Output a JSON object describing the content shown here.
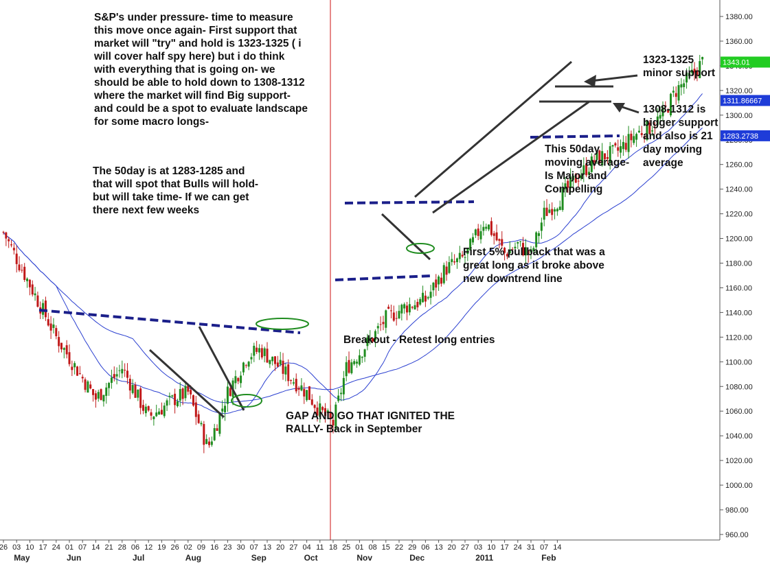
{
  "chart_data": {
    "type": "candlestick",
    "title": "",
    "xlabel": "",
    "ylabel": "",
    "ylim": [
      955,
      1390
    ],
    "y_ticks": [
      "960.00",
      "980.00",
      "1000.00",
      "1020.00",
      "1040.00",
      "1060.00",
      "1080.00",
      "1100.00",
      "1120.00",
      "1140.00",
      "1160.00",
      "1180.00",
      "1200.00",
      "1220.00",
      "1240.00",
      "1260.00",
      "1280.00",
      "1300.00",
      "1320.00",
      "1340.00",
      "1360.00",
      "1380.00"
    ],
    "x_day_ticks": [
      "26",
      "03",
      "10",
      "17",
      "24",
      "01",
      "07",
      "14",
      "21",
      "28",
      "06",
      "12",
      "19",
      "26",
      "02",
      "09",
      "16",
      "23",
      "30",
      "07",
      "13",
      "20",
      "27",
      "04",
      "11",
      "18",
      "25",
      "01",
      "08",
      "15",
      "22",
      "29",
      "06",
      "13",
      "20",
      "27",
      "03",
      "10",
      "17",
      "24",
      "31",
      "07",
      "14"
    ],
    "x_month_labels": [
      {
        "label": "May",
        "day_index": 1
      },
      {
        "label": "Jun",
        "day_index": 5
      },
      {
        "label": "Jul",
        "day_index": 10
      },
      {
        "label": "Aug",
        "day_index": 14
      },
      {
        "label": "Sep",
        "day_index": 19
      },
      {
        "label": "Oct",
        "day_index": 23
      },
      {
        "label": "Nov",
        "day_index": 27
      },
      {
        "label": "Dec",
        "day_index": 31
      },
      {
        "label": "2011",
        "day_index": 36
      },
      {
        "label": "Feb",
        "day_index": 41
      }
    ],
    "price_badges": [
      {
        "label": "1343.01",
        "value": 1343.01,
        "color": "#22cc22"
      },
      {
        "label": "1311.86667",
        "value": 1311.87,
        "color": "#1e3cd8"
      },
      {
        "label": "1283.2738",
        "value": 1283.27,
        "color": "#1e3cd8"
      }
    ],
    "annotations": [
      {
        "lines": [
          "S&P's under pressure- time to measure",
          "this move once again- First support that",
          "market will \"try\" and hold is 1323-1325 ( i",
          "will cover half spy here)  but i do think",
          "with everything that is going on- we",
          "should be able to hold down to 1308-1312",
          "where the market will find Big support-",
          "and could be a spot to evaluate landscape",
          "for some macro longs-"
        ]
      },
      {
        "lines": [
          "The 50day is at 1283-1285 and",
          "that will spot that Bulls will hold-",
          "but will take time- If we can get",
          "there next few weeks"
        ]
      },
      {
        "lines": [
          "1323-1325",
          "minor support"
        ]
      },
      {
        "lines": [
          "1308-1312 is",
          "bigger support",
          "and also is 21",
          "day moving",
          "average"
        ]
      },
      {
        "lines": [
          "This 50day",
          "moving average-",
          "Is Major and",
          "Compelling"
        ]
      },
      {
        "lines": [
          "First 5% pullback that was a",
          "great long as it broke above",
          "new downtrend line"
        ]
      },
      {
        "lines": [
          "Breakout - Retest long entries"
        ]
      },
      {
        "lines": [
          "GAP AND GO THAT IGNITED THE",
          "RALLY- Back in September"
        ]
      }
    ],
    "moving_averages": [
      {
        "name": "",
        "color": "#2a3fd0",
        "period_days": 21
      },
      {
        "name": "",
        "color": "#2a3fd0",
        "period_days": 50
      }
    ],
    "close_path": [
      [
        0,
        1205
      ],
      [
        4,
        1120
      ],
      [
        7,
        1070
      ],
      [
        9,
        1095
      ],
      [
        11,
        1055
      ],
      [
        13,
        1070
      ],
      [
        14,
        1075
      ],
      [
        15.5,
        1030
      ],
      [
        17,
        1075
      ],
      [
        18.5,
        1105
      ],
      [
        19.5,
        1110
      ],
      [
        21,
        1095
      ],
      [
        23,
        1075
      ],
      [
        24,
        1060
      ],
      [
        25,
        1050
      ],
      [
        26,
        1095
      ],
      [
        28,
        1120
      ],
      [
        29,
        1135
      ],
      [
        30.5,
        1145
      ],
      [
        32,
        1150
      ],
      [
        33.5,
        1175
      ],
      [
        35,
        1185
      ],
      [
        36.5,
        1215
      ],
      [
        38,
        1188
      ],
      [
        39,
        1195
      ],
      [
        40,
        1186
      ],
      [
        41,
        1220
      ],
      [
        42,
        1230
      ],
      [
        43.5,
        1250
      ],
      [
        45,
        1265
      ],
      [
        46.5,
        1270
      ],
      [
        48,
        1285
      ],
      [
        49,
        1290
      ],
      [
        50,
        1300
      ],
      [
        51,
        1320
      ],
      [
        52,
        1330
      ],
      [
        53,
        1343
      ]
    ],
    "grid": false,
    "legend": "none"
  }
}
